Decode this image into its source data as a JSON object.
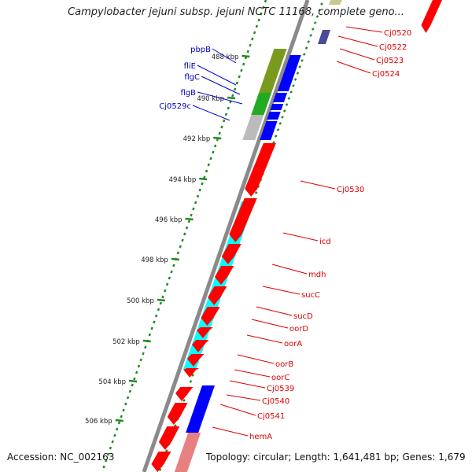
{
  "title": "Campylobacter jejuni subsp. jejuni NCTC 11168, complete geno...",
  "footer": {
    "accession": "Accession: NC_002163",
    "topology": "Topology: circular; Length: 1,641,481 bp; Genes: 1,679"
  },
  "scale": {
    "tick_labels": [
      "488 kbp",
      "490 kbp",
      "492 kbp",
      "494 kbp",
      "496 kbp",
      "498 kbp",
      "500 kbp",
      "502 kbp",
      "504 kbp",
      "506 kbp"
    ]
  },
  "genes_left": [
    {
      "name": "pbpB",
      "color": "#0000cc"
    },
    {
      "name": "fliE",
      "color": "#0000cc"
    },
    {
      "name": "flgC",
      "color": "#0000cc"
    },
    {
      "name": "flgB",
      "color": "#0000cc"
    },
    {
      "name": "Cj0529c",
      "color": "#0000cc"
    }
  ],
  "genes_right": [
    {
      "name": "Cj0520"
    },
    {
      "name": "Cj0522"
    },
    {
      "name": "Cj0523"
    },
    {
      "name": "Cj0524"
    },
    {
      "name": "Cj0530"
    },
    {
      "name": "icd"
    },
    {
      "name": "mdh"
    },
    {
      "name": "sucC"
    },
    {
      "name": "sucD"
    },
    {
      "name": "oorD"
    },
    {
      "name": "oorA"
    },
    {
      "name": "oorB"
    },
    {
      "name": "oorC"
    },
    {
      "name": "Cj0539"
    },
    {
      "name": "Cj0540"
    },
    {
      "name": "Cj0541"
    },
    {
      "name": "hemA"
    }
  ],
  "colors": {
    "forward_strand": "#ff0000",
    "reverse_strand": "#0000ff",
    "cog_cyan": "#00ffff",
    "cog_olive": "#7a9a1e",
    "cog_green": "#22aa22",
    "cog_gray": "#bbbbbb",
    "label_right": "#dd0000",
    "label_left": "#0000cc",
    "ticks": "#228b22",
    "backbone": "#888888"
  }
}
